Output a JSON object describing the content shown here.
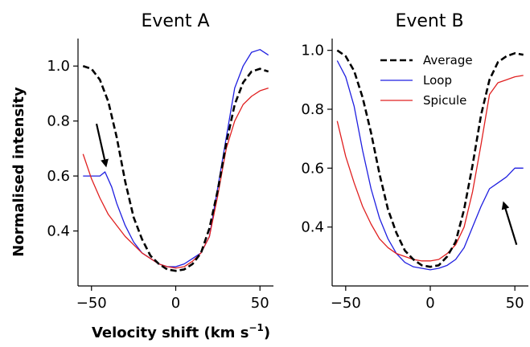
{
  "figure": {
    "xlabel": "Velocity shift (km s",
    "xlabel_exp": "−1",
    "xlabel_close": ")",
    "ylabel": "Normalised intensity"
  },
  "chart_data": [
    {
      "type": "line",
      "title": "Event A",
      "xlim": [
        -58,
        58
      ],
      "ylim": [
        0.2,
        1.1
      ],
      "xticks": [
        -50,
        0,
        50
      ],
      "xtick_labels": [
        "−50",
        "0",
        "50"
      ],
      "yticks": [
        0.4,
        0.6,
        0.8,
        1.0
      ],
      "ytick_labels": [
        "0.4",
        "0.6",
        "0.8",
        "1.0"
      ],
      "legend": null,
      "series": [
        {
          "name": "Average",
          "color": "#000000",
          "dash": true,
          "x": [
            -55,
            -50,
            -45,
            -40,
            -35,
            -30,
            -25,
            -20,
            -15,
            -10,
            -5,
            0,
            5,
            10,
            15,
            20,
            25,
            30,
            35,
            40,
            45,
            50,
            55
          ],
          "y": [
            1.0,
            0.99,
            0.95,
            0.87,
            0.74,
            0.58,
            0.45,
            0.37,
            0.31,
            0.28,
            0.26,
            0.255,
            0.26,
            0.28,
            0.32,
            0.41,
            0.55,
            0.72,
            0.86,
            0.94,
            0.98,
            0.99,
            0.98
          ]
        },
        {
          "name": "Loop",
          "color": "#1f1fe0",
          "dash": false,
          "x": [
            -55,
            -50,
            -45,
            -42,
            -38,
            -35,
            -30,
            -25,
            -20,
            -15,
            -10,
            -5,
            0,
            5,
            10,
            15,
            20,
            25,
            30,
            35,
            40,
            45,
            50,
            55
          ],
          "y": [
            0.6,
            0.6,
            0.6,
            0.615,
            0.56,
            0.5,
            0.42,
            0.36,
            0.32,
            0.3,
            0.28,
            0.27,
            0.27,
            0.28,
            0.3,
            0.32,
            0.38,
            0.56,
            0.74,
            0.92,
            1.0,
            1.05,
            1.06,
            1.04
          ]
        },
        {
          "name": "Spicule",
          "color": "#e02020",
          "dash": false,
          "x": [
            -55,
            -50,
            -45,
            -40,
            -35,
            -30,
            -25,
            -20,
            -15,
            -10,
            -5,
            0,
            5,
            10,
            15,
            20,
            25,
            30,
            35,
            40,
            45,
            50,
            55
          ],
          "y": [
            0.68,
            0.59,
            0.52,
            0.46,
            0.42,
            0.38,
            0.35,
            0.32,
            0.3,
            0.28,
            0.27,
            0.265,
            0.27,
            0.29,
            0.32,
            0.38,
            0.53,
            0.7,
            0.8,
            0.86,
            0.89,
            0.91,
            0.92
          ]
        }
      ],
      "arrow": {
        "from": [
          -47,
          0.79
        ],
        "to": [
          -41.5,
          0.64
        ]
      }
    },
    {
      "type": "line",
      "title": "Event B",
      "xlim": [
        -58,
        58
      ],
      "ylim": [
        0.2,
        1.04
      ],
      "xticks": [
        -50,
        0,
        50
      ],
      "xtick_labels": [
        "−50",
        "0",
        "50"
      ],
      "yticks": [
        0.4,
        0.6,
        0.8,
        1.0
      ],
      "ytick_labels": [
        "0.4",
        "0.6",
        "0.8",
        "1.0"
      ],
      "legend": "top-right",
      "series": [
        {
          "name": "Average",
          "color": "#000000",
          "dash": true,
          "x": [
            -55,
            -50,
            -45,
            -40,
            -35,
            -30,
            -25,
            -20,
            -15,
            -10,
            -5,
            0,
            5,
            10,
            15,
            20,
            25,
            30,
            35,
            40,
            45,
            50,
            55
          ],
          "y": [
            1.0,
            0.98,
            0.93,
            0.84,
            0.72,
            0.58,
            0.46,
            0.38,
            0.32,
            0.29,
            0.27,
            0.265,
            0.27,
            0.3,
            0.35,
            0.46,
            0.61,
            0.78,
            0.9,
            0.96,
            0.98,
            0.99,
            0.985
          ]
        },
        {
          "name": "Loop",
          "color": "#1f1fe0",
          "dash": false,
          "x": [
            -55,
            -50,
            -45,
            -40,
            -35,
            -30,
            -25,
            -20,
            -15,
            -10,
            -5,
            0,
            5,
            10,
            15,
            20,
            25,
            30,
            35,
            40,
            45,
            50,
            55
          ],
          "y": [
            0.965,
            0.91,
            0.81,
            0.66,
            0.53,
            0.43,
            0.36,
            0.31,
            0.28,
            0.265,
            0.26,
            0.255,
            0.26,
            0.27,
            0.29,
            0.33,
            0.4,
            0.47,
            0.53,
            0.55,
            0.57,
            0.6,
            0.6
          ]
        },
        {
          "name": "Spicule",
          "color": "#e02020",
          "dash": false,
          "x": [
            -55,
            -50,
            -45,
            -40,
            -35,
            -30,
            -25,
            -20,
            -15,
            -10,
            -5,
            0,
            5,
            10,
            15,
            20,
            25,
            30,
            35,
            40,
            45,
            50,
            55
          ],
          "y": [
            0.76,
            0.64,
            0.55,
            0.47,
            0.41,
            0.36,
            0.33,
            0.31,
            0.3,
            0.29,
            0.285,
            0.285,
            0.29,
            0.31,
            0.34,
            0.4,
            0.52,
            0.68,
            0.85,
            0.89,
            0.9,
            0.91,
            0.915
          ]
        }
      ],
      "arrow": {
        "from": [
          51,
          0.34
        ],
        "to": [
          43.5,
          0.48
        ]
      }
    }
  ]
}
